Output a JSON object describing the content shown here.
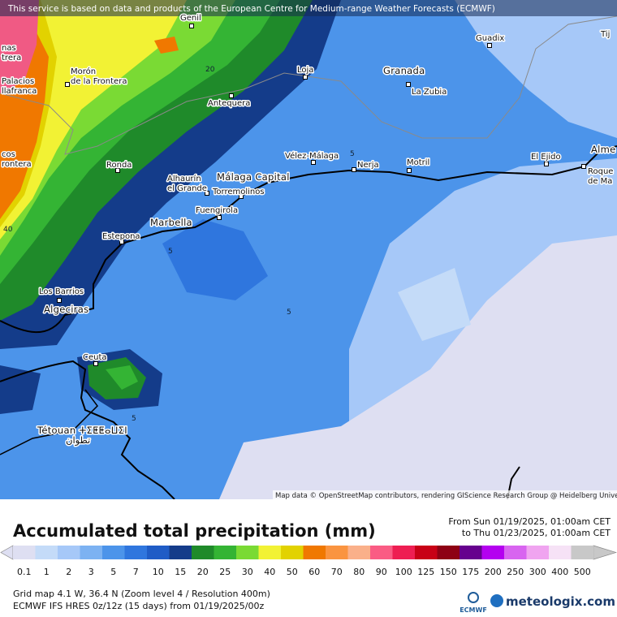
{
  "header": {
    "notice": "This service is based on data and products of the European Centre for Medium-range Weather Forecasts (ECMWF)"
  },
  "map": {
    "attribution": "Map data © OpenStreetMap contributors, rendering GIScience Research Group @ Heidelberg University",
    "places": [
      {
        "lines": [
          "Guadix"
        ]
      },
      {
        "lines": [
          "Loja"
        ]
      },
      {
        "lines": [
          "Granada"
        ]
      },
      {
        "lines": [
          "La Zubia"
        ]
      },
      {
        "lines": [
          "Morón",
          "de la Frontera"
        ]
      },
      {
        "lines": [
          "Antequera"
        ]
      },
      {
        "lines": [
          "Vélez-Málaga"
        ]
      },
      {
        "lines": [
          "Nerja"
        ]
      },
      {
        "lines": [
          "Motril"
        ]
      },
      {
        "lines": [
          "El Ejido"
        ]
      },
      {
        "lines": [
          "Ronda"
        ]
      },
      {
        "lines": [
          "Alhaurín",
          "el Grande"
        ]
      },
      {
        "lines": [
          "Málaga Capital"
        ]
      },
      {
        "lines": [
          "Torremolinos"
        ]
      },
      {
        "lines": [
          "Fuengirola"
        ]
      },
      {
        "lines": [
          "Marbella"
        ]
      },
      {
        "lines": [
          "Estepona"
        ]
      },
      {
        "lines": [
          "Los Barrios"
        ]
      },
      {
        "lines": [
          "Algeciras"
        ]
      },
      {
        "lines": [
          "Ceuta"
        ]
      },
      {
        "lines": [
          "Tétouan ⵜⵉⵟⵟⴰⵡⵉⵏ",
          "تطوان"
        ]
      },
      {
        "lines": [
          "Palacios",
          "llafranca"
        ]
      },
      {
        "lines": [
          "nas",
          "trera"
        ]
      },
      {
        "lines": [
          "cos",
          "rontera"
        ]
      },
      {
        "lines": [
          "Alme"
        ]
      },
      {
        "lines": [
          "Roque",
          "de Ma"
        ]
      },
      {
        "lines": [
          "Tij"
        ]
      },
      {
        "lines": [
          "Genil"
        ]
      }
    ],
    "contour_labels": [
      "5",
      "5",
      "5",
      "20",
      "40",
      "5"
    ]
  },
  "legend": {
    "title": "Accumulated total precipitation (mm)",
    "period_from": "From Sun 01/19/2025, 01:00am CET",
    "period_to": "to Thu 01/23/2025, 01:00am CET",
    "steps": [
      {
        "label": "0.1",
        "color": "#dedff2"
      },
      {
        "label": "1",
        "color": "#c4dbf8"
      },
      {
        "label": "2",
        "color": "#a6c8f8"
      },
      {
        "label": "3",
        "color": "#7cb2f2"
      },
      {
        "label": "5",
        "color": "#4c94ea"
      },
      {
        "label": "7",
        "color": "#2f76de"
      },
      {
        "label": "10",
        "color": "#1f5cc6"
      },
      {
        "label": "15",
        "color": "#143c8a"
      },
      {
        "label": "20",
        "color": "#1f8a2a"
      },
      {
        "label": "25",
        "color": "#34b434"
      },
      {
        "label": "30",
        "color": "#7ada34"
      },
      {
        "label": "40",
        "color": "#f2f234"
      },
      {
        "label": "50",
        "color": "#e2d200"
      },
      {
        "label": "60",
        "color": "#f07800"
      },
      {
        "label": "70",
        "color": "#fa9440"
      },
      {
        "label": "80",
        "color": "#fab08a"
      },
      {
        "label": "90",
        "color": "#fa5c84"
      },
      {
        "label": "100",
        "color": "#ee1e52"
      },
      {
        "label": "125",
        "color": "#c80016"
      },
      {
        "label": "150",
        "color": "#8e0014"
      },
      {
        "label": "175",
        "color": "#66008e"
      },
      {
        "label": "200",
        "color": "#b400f0"
      },
      {
        "label": "250",
        "color": "#d864f0"
      },
      {
        "label": "300",
        "color": "#f0a4f0"
      },
      {
        "label": "400",
        "color": "#f6e2f6"
      },
      {
        "label": "500",
        "color": "#c8c8c8"
      }
    ]
  },
  "footer": {
    "grid": "Grid map 4.1 W, 36.4 N (Zoom level 4 / Resolution 400m)",
    "model": "ECMWF IFS HRES 0z/12z (15 days) from 01/19/2025/00z",
    "ecmwf_logo": "ECMWF",
    "brand": "meteologix.com"
  }
}
